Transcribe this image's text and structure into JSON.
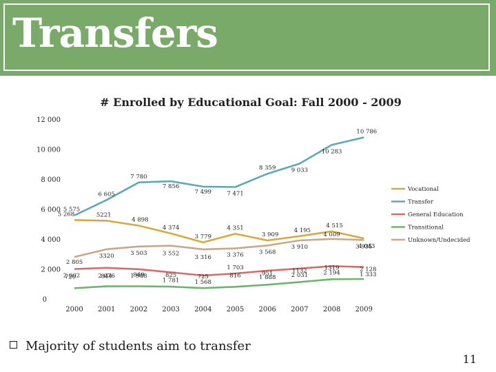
{
  "slide": {
    "title": "Transfers",
    "bullet": "Majority of students aim to transfer",
    "page_number": "11"
  },
  "chart_data": {
    "type": "line",
    "title": "# Enrolled by Educational Goal: Fall 2000 - 2009",
    "xlabel": "",
    "ylabel": "",
    "categories": [
      "2000",
      "2001",
      "2002",
      "2003",
      "2004",
      "2005",
      "2006",
      "2007",
      "2008",
      "2009"
    ],
    "ylim": [
      0,
      12000
    ],
    "yticks": [
      "0",
      "2 000",
      "4 000",
      "6 000",
      "8 000",
      "10 000",
      "12 000"
    ],
    "ytick_values": [
      0,
      2000,
      4000,
      6000,
      8000,
      10000,
      12000
    ],
    "grid": false,
    "legend_position": "right",
    "series": [
      {
        "name": "Vocational",
        "color": "#d9a93a",
        "values": [
          5268,
          5221,
          4898,
          4374,
          3779,
          4351,
          3909,
          4195,
          4515,
          4043
        ],
        "labels": [
          "5 268",
          "5221",
          "4 898",
          "4 374",
          "3 779",
          "4 351",
          "3 909",
          "4 195",
          "4 515",
          "4 043"
        ]
      },
      {
        "name": "Transfer",
        "color": "#5ea8b8",
        "values": [
          5575,
          6605,
          7780,
          7856,
          7499,
          7471,
          8359,
          9033,
          10283,
          10786
        ],
        "labels": [
          "5 575",
          "6 605",
          "7 780",
          "7 856",
          "7 499",
          "7 471",
          "8 359",
          "9 033",
          "10 283",
          "10 786"
        ]
      },
      {
        "name": "General Education",
        "color": "#d96b6b",
        "values": [
          2002,
          2076,
          1988,
          1781,
          1568,
          1703,
          1888,
          2031,
          2194,
          2128
        ],
        "labels": [
          "2 002",
          "2 076",
          "1 988",
          "1 781",
          "1 568",
          "1 703",
          "1 888",
          "2 031",
          "2 194",
          "2 128"
        ]
      },
      {
        "name": "Transitional",
        "color": "#6db56d",
        "values": [
          720,
          844,
          849,
          825,
          725,
          816,
          951,
          1132,
          1319,
          1333
        ],
        "labels": [
          "720",
          "844",
          "849",
          "825",
          "725",
          "816",
          "951",
          "1132",
          "1319",
          "1 333"
        ]
      },
      {
        "name": "Unknown/Undecided",
        "color": "#c9a88a",
        "values": [
          2805,
          3320,
          3503,
          3552,
          3316,
          3376,
          3568,
          3910,
          4009,
          3935
        ],
        "labels": [
          "2 805",
          "3320",
          "3 503",
          "3 552",
          "3 316",
          "3 376",
          "3 568",
          "3 910",
          "4 009",
          "3 935"
        ]
      }
    ]
  }
}
